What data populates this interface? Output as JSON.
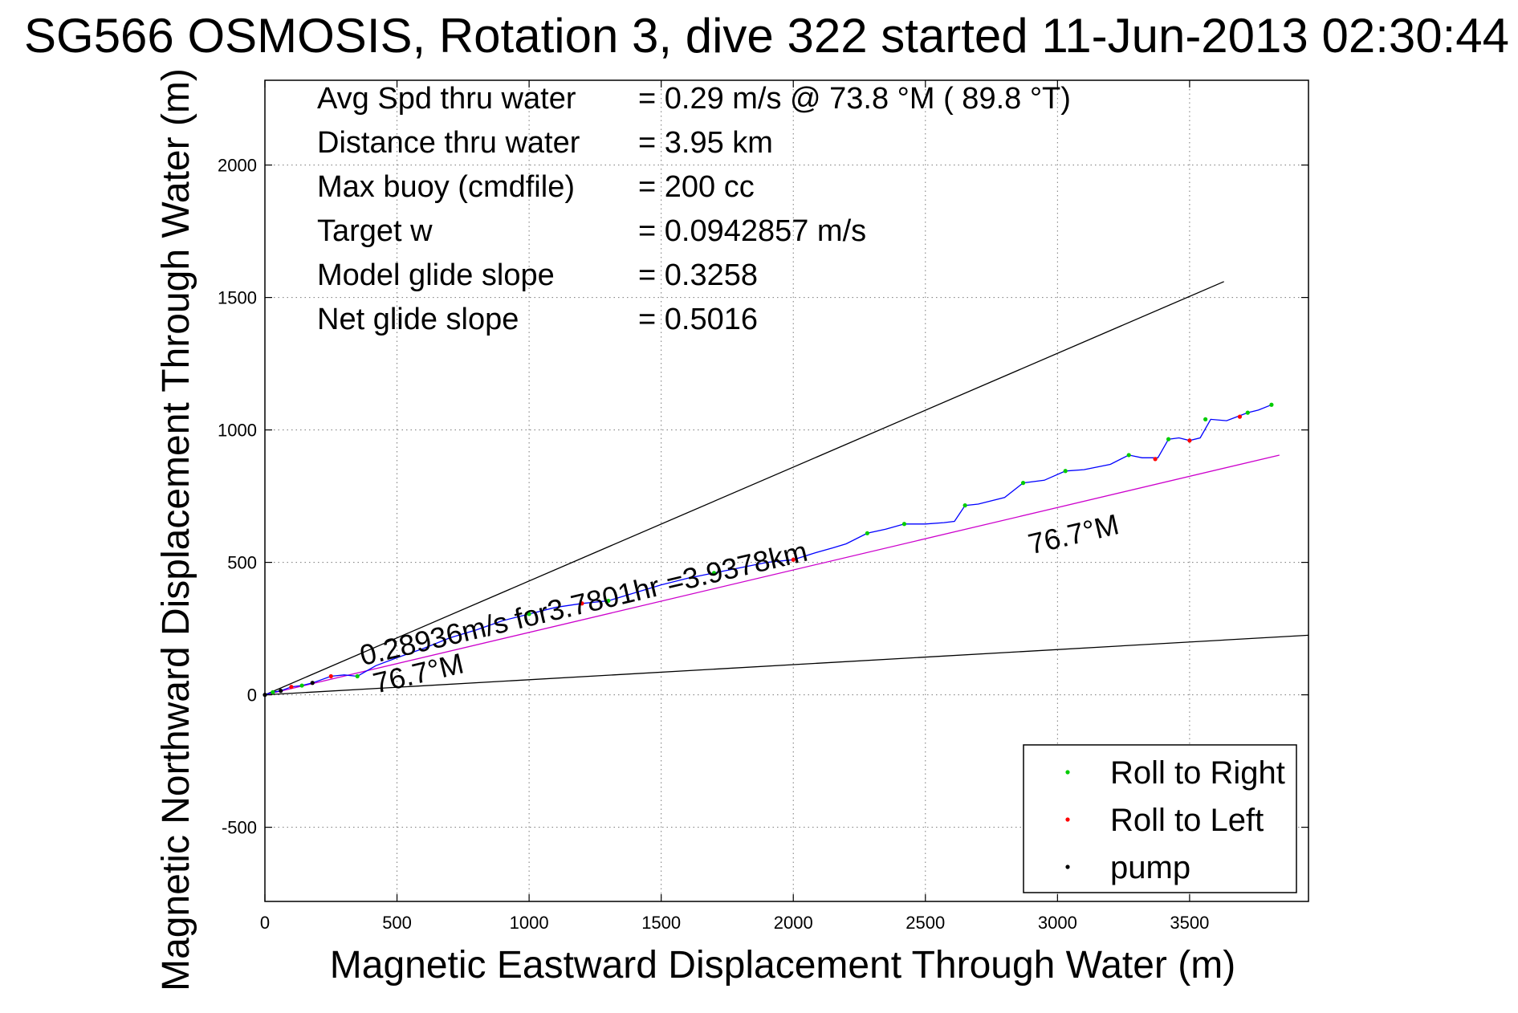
{
  "chart_data": {
    "type": "line",
    "title": "SG566 OSMOSIS, Rotation 3, dive 322 started 11-Jun-2013 02:30:44",
    "xlabel": "Magnetic Eastward Displacement Through Water (m)",
    "ylabel": "Magnetic Northward Displacement Through Water (m)",
    "xlim": [
      0,
      3950
    ],
    "ylim": [
      -780,
      2320
    ],
    "x_ticks": [
      0,
      500,
      1000,
      1500,
      2000,
      2500,
      3000,
      3500
    ],
    "y_ticks": [
      -500,
      0,
      500,
      1000,
      1500,
      2000
    ],
    "grid": true,
    "legend_position": "bottom-right",
    "stats": [
      {
        "label": "Avg Spd thru water",
        "value": "=  0.29 m/s @  73.8 °M ( 89.8 °T)"
      },
      {
        "label": "Distance thru water",
        "value": "=  3.95 km"
      },
      {
        "label": "Max buoy (cmdfile)",
        "value": "= 200 cc"
      },
      {
        "label": "Target w",
        "value": "= 0.0942857 m/s"
      },
      {
        "label": "Model glide slope",
        "value": "= 0.3258"
      },
      {
        "label": "Net glide slope",
        "value": "= 0.5016"
      }
    ],
    "annotations": [
      {
        "text": "0.28936m/s for3.7801hr =3.9378km",
        "x": 370,
        "y": 110
      },
      {
        "text": "76.7°M",
        "x": 420,
        "y": 5
      },
      {
        "text": "76.7°M",
        "x": 2900,
        "y": 530
      }
    ],
    "reference_lines": [
      {
        "name": "upper_bound",
        "color": "#000000",
        "x": [
          0,
          3630
        ],
        "y": [
          0,
          1560
        ]
      },
      {
        "name": "lower_bound",
        "color": "#000000",
        "x": [
          0,
          3950
        ],
        "y": [
          0,
          225
        ]
      },
      {
        "name": "heading_76.7M",
        "color": "#cc00cc",
        "x": [
          0,
          3840
        ],
        "y": [
          0,
          905
        ]
      }
    ],
    "track": {
      "color": "#0000ff",
      "x": [
        0,
        30,
        60,
        100,
        140,
        180,
        250,
        300,
        350,
        420,
        500,
        600,
        700,
        800,
        900,
        1000,
        1100,
        1200,
        1300,
        1400,
        1500,
        1600,
        1700,
        1800,
        1900,
        2000,
        2080,
        2150,
        2200,
        2280,
        2350,
        2420,
        2500,
        2570,
        2610,
        2650,
        2700,
        2800,
        2870,
        2950,
        3030,
        3100,
        3200,
        3270,
        3320,
        3380,
        3420,
        3460,
        3500,
        3540,
        3580,
        3640,
        3680,
        3720,
        3760,
        3810
      ],
      "y": [
        0,
        10,
        15,
        30,
        35,
        45,
        70,
        75,
        70,
        110,
        140,
        175,
        215,
        245,
        280,
        305,
        330,
        345,
        355,
        385,
        415,
        440,
        460,
        480,
        500,
        510,
        535,
        555,
        570,
        610,
        625,
        645,
        645,
        650,
        655,
        715,
        720,
        745,
        800,
        810,
        845,
        850,
        870,
        905,
        895,
        895,
        965,
        970,
        960,
        970,
        1040,
        1035,
        1050,
        1065,
        1075,
        1095
      ]
    },
    "series": [
      {
        "name": "Roll to Right",
        "color": "#00cc00",
        "x": [
          30,
          140,
          350,
          1000,
          1300,
          1700,
          2280,
          2420,
          2650,
          2870,
          3030,
          3270,
          3420,
          3560,
          3720,
          3810
        ],
        "y": [
          10,
          35,
          70,
          305,
          355,
          460,
          610,
          645,
          715,
          800,
          845,
          905,
          965,
          1040,
          1065,
          1095
        ]
      },
      {
        "name": "Roll to Left",
        "color": "#ff0000",
        "x": [
          100,
          250,
          1200,
          2000,
          3370,
          3500,
          3690
        ],
        "y": [
          30,
          70,
          345,
          510,
          890,
          960,
          1050
        ]
      },
      {
        "name": "pump",
        "color": "#000000",
        "x": [
          0,
          60,
          180
        ],
        "y": [
          0,
          15,
          45
        ]
      }
    ]
  }
}
